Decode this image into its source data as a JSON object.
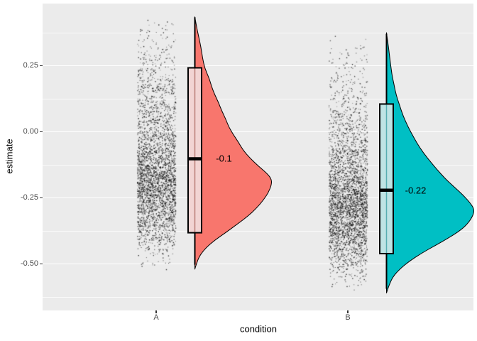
{
  "chart_data": {
    "type": "raincloud (jittered points + boxplot + half-violin density)",
    "title": "",
    "xlabel": "condition",
    "ylabel": "estimate",
    "x_categories": [
      "A",
      "B"
    ],
    "y_tick_labels": [
      "0.25",
      "0.00",
      "-0.25",
      "-0.50"
    ],
    "y_tick_values": [
      0.25,
      0.0,
      -0.25,
      -0.5
    ],
    "y_minor_tick_values": [
      0.375,
      0.125,
      -0.125,
      -0.375,
      -0.625
    ],
    "y_range": [
      -0.675,
      0.487
    ],
    "grid": "on",
    "legend": "none",
    "groups": [
      {
        "label": "A",
        "violin_color": "#F8766D",
        "box_fill": "#F2D4D3",
        "box_inner_line": "#BA7E78",
        "median_label": "-0.1",
        "stats": {
          "median": -0.102,
          "q1": -0.382,
          "q3": 0.242,
          "whisker_low": -0.503,
          "whisker_high": 0.433
        },
        "points_n": 3200,
        "density_profile": [
          [
            0.435,
            0
          ],
          [
            0.4,
            0.02
          ],
          [
            0.36,
            0.05
          ],
          [
            0.32,
            0.08
          ],
          [
            0.28,
            0.1
          ],
          [
            0.24,
            0.13
          ],
          [
            0.2,
            0.19
          ],
          [
            0.17,
            0.22
          ],
          [
            0.14,
            0.26
          ],
          [
            0.11,
            0.31
          ],
          [
            0.08,
            0.35
          ],
          [
            0.05,
            0.4
          ],
          [
            0.02,
            0.44
          ],
          [
            -0.01,
            0.5
          ],
          [
            -0.04,
            0.57
          ],
          [
            -0.07,
            0.63
          ],
          [
            -0.1,
            0.72
          ],
          [
            -0.13,
            0.83
          ],
          [
            -0.16,
            0.95
          ],
          [
            -0.18,
            1.0
          ],
          [
            -0.2,
            1.0
          ],
          [
            -0.23,
            0.96
          ],
          [
            -0.26,
            0.89
          ],
          [
            -0.29,
            0.8
          ],
          [
            -0.32,
            0.69
          ],
          [
            -0.35,
            0.55
          ],
          [
            -0.38,
            0.41
          ],
          [
            -0.41,
            0.26
          ],
          [
            -0.44,
            0.14
          ],
          [
            -0.47,
            0.06
          ],
          [
            -0.5,
            0.02
          ],
          [
            -0.52,
            0
          ]
        ]
      },
      {
        "label": "B",
        "violin_color": "#00BFC4",
        "box_fill": "#BFE4E4",
        "box_inner_line": "#58AEB1",
        "median_label": "-0.22",
        "stats": {
          "median": -0.221,
          "q1": -0.461,
          "q3": 0.105,
          "whisker_low": -0.594,
          "whisker_high": 0.371
        },
        "points_n": 3200,
        "density_profile": [
          [
            0.375,
            0
          ],
          [
            0.34,
            0.015
          ],
          [
            0.3,
            0.03
          ],
          [
            0.26,
            0.045
          ],
          [
            0.22,
            0.06
          ],
          [
            0.18,
            0.085
          ],
          [
            0.14,
            0.11
          ],
          [
            0.1,
            0.15
          ],
          [
            0.06,
            0.19
          ],
          [
            0.02,
            0.245
          ],
          [
            -0.02,
            0.31
          ],
          [
            -0.06,
            0.38
          ],
          [
            -0.1,
            0.47
          ],
          [
            -0.14,
            0.57
          ],
          [
            -0.18,
            0.68
          ],
          [
            -0.21,
            0.78
          ],
          [
            -0.24,
            0.88
          ],
          [
            -0.27,
            0.96
          ],
          [
            -0.29,
            1.0
          ],
          [
            -0.31,
            1.0
          ],
          [
            -0.34,
            0.95
          ],
          [
            -0.37,
            0.86
          ],
          [
            -0.4,
            0.72
          ],
          [
            -0.43,
            0.56
          ],
          [
            -0.46,
            0.4
          ],
          [
            -0.49,
            0.26
          ],
          [
            -0.52,
            0.15
          ],
          [
            -0.55,
            0.07
          ],
          [
            -0.58,
            0.03
          ],
          [
            -0.61,
            0
          ]
        ]
      }
    ]
  },
  "colors": {
    "figure_bg": "#FFFFFF",
    "panel_bg": "#EBEBEB",
    "grid_major": "#FFFFFF",
    "grid_minor": "#FFFFFF",
    "tick_label": "#4D4D4D",
    "tick_mark": "#333333",
    "axis_title": "#000000",
    "point_color": "#000000",
    "geom_outline": "#000000"
  }
}
